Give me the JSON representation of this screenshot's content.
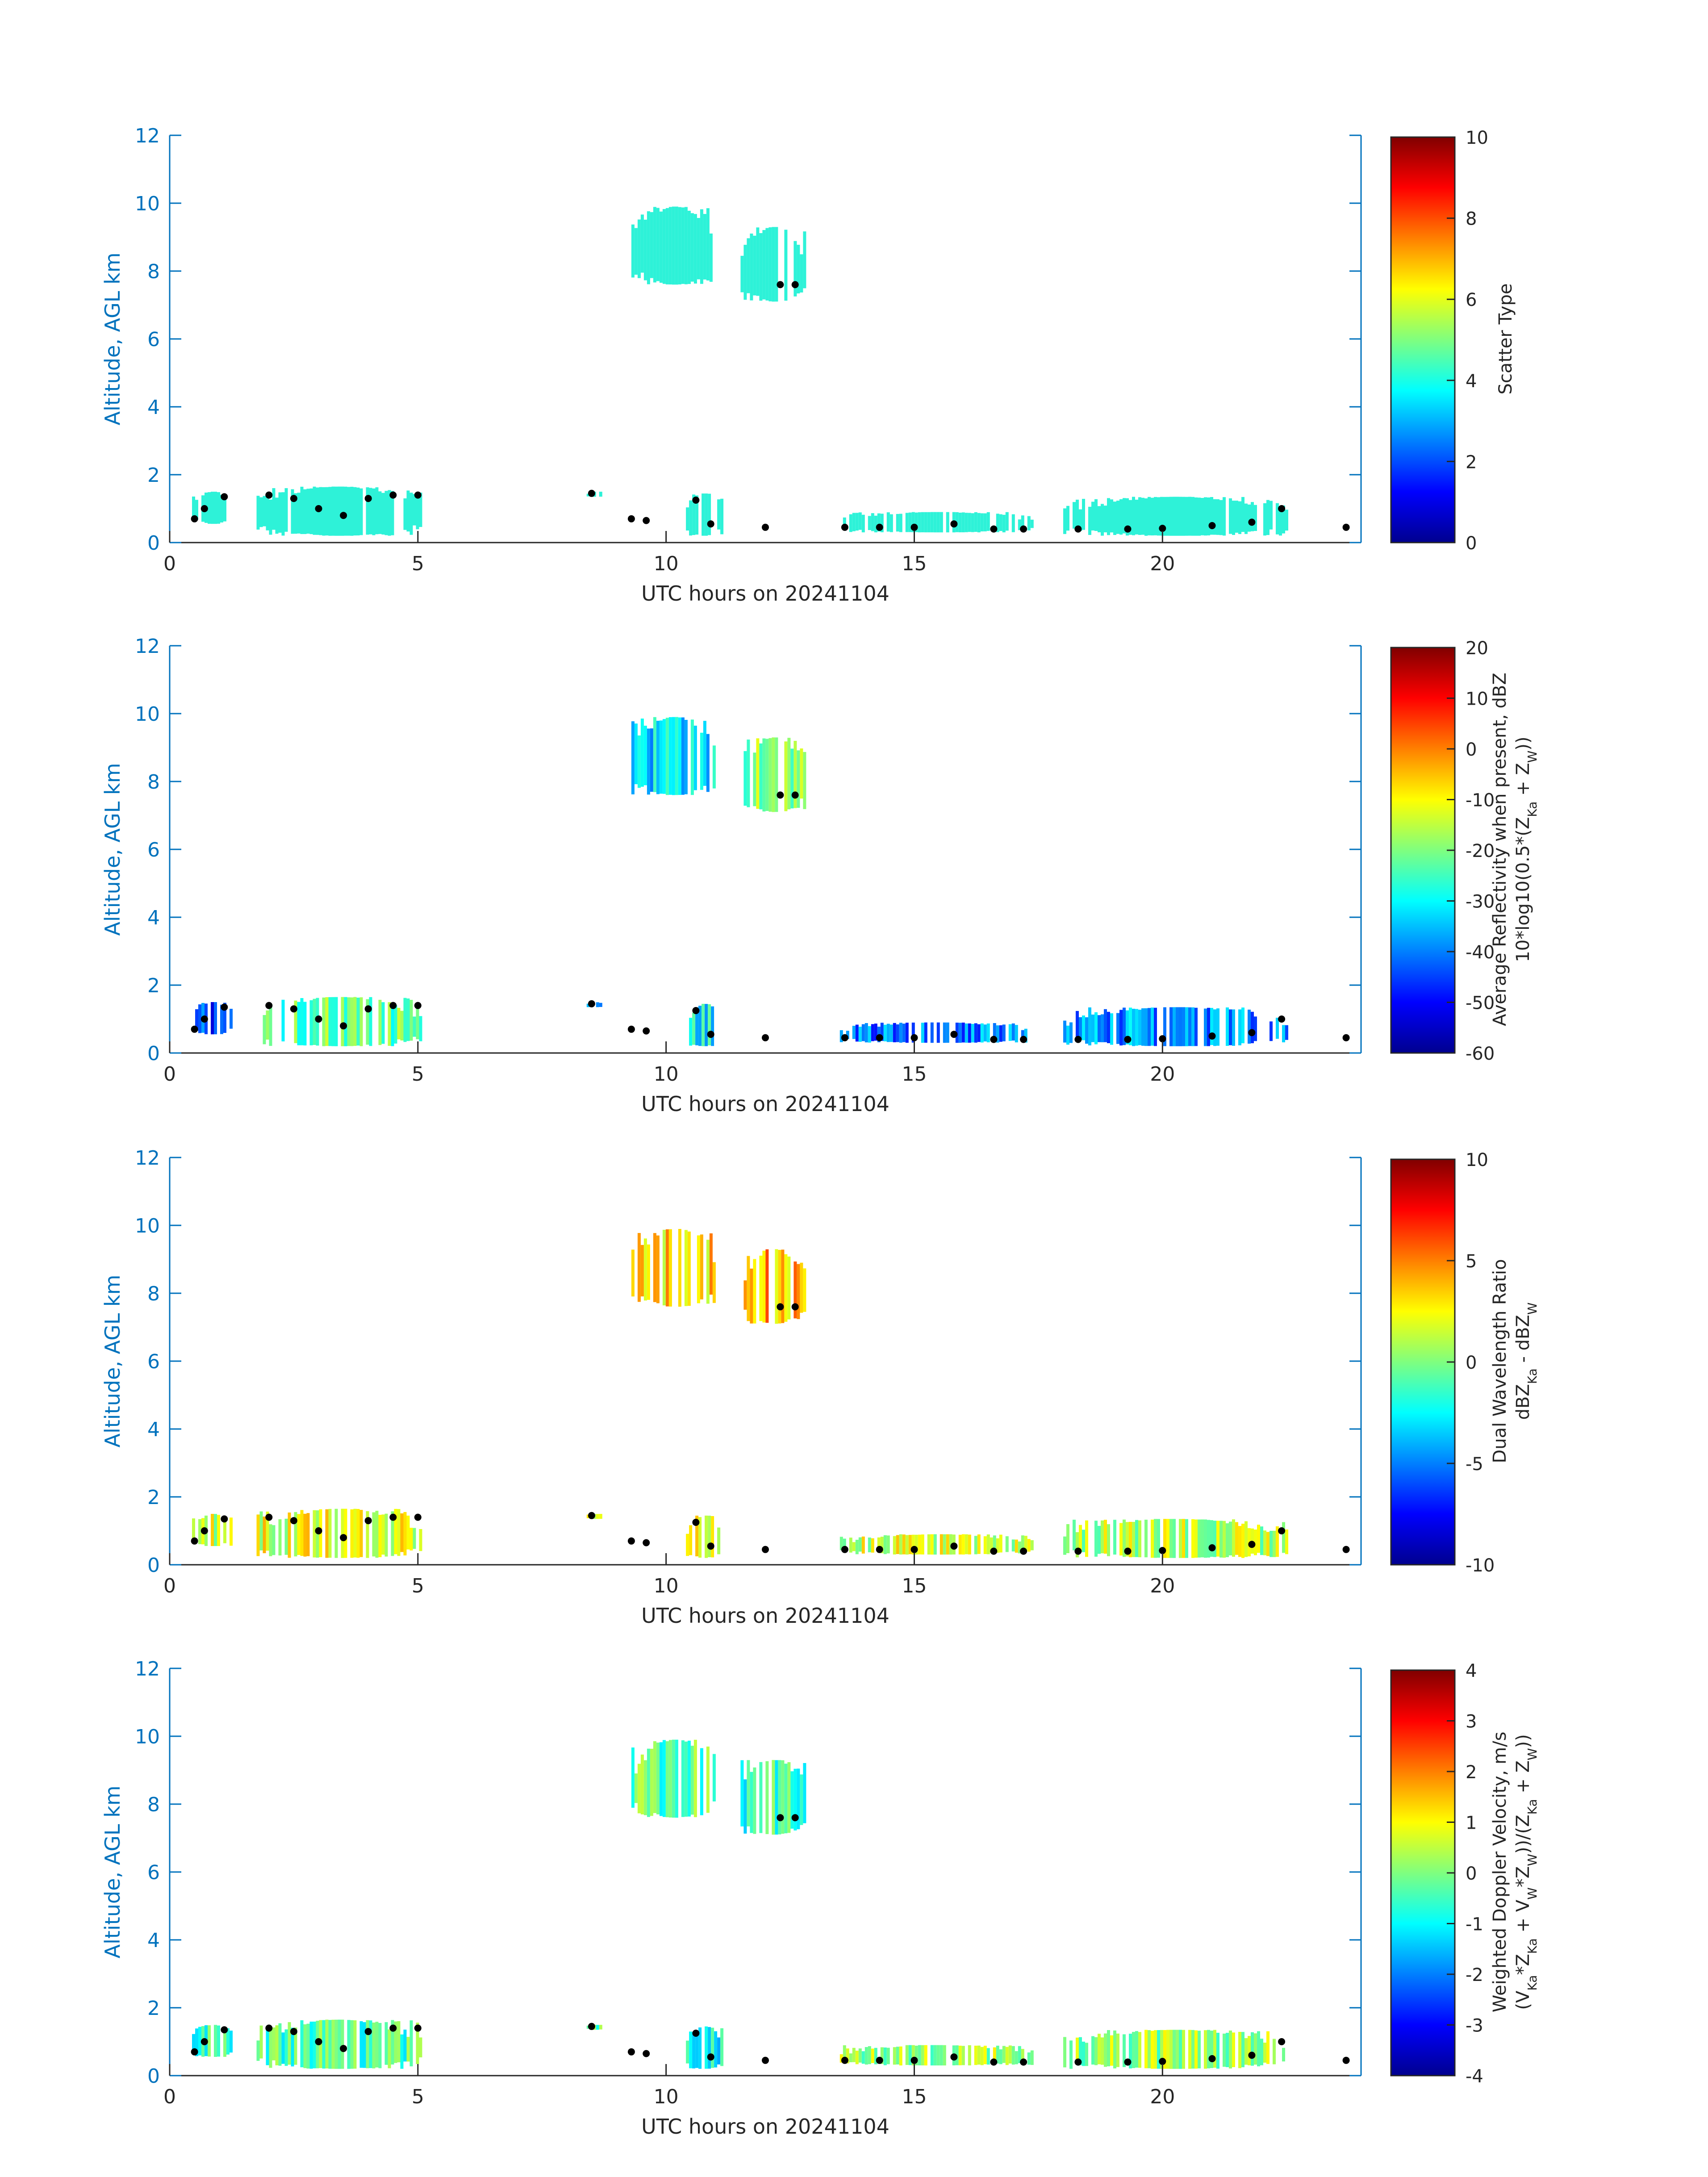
{
  "figure": {
    "date_label": "20241104"
  },
  "colors": {
    "axis_blue": "#0072BD",
    "axis_black": "#262626",
    "cloud_cyan": "#2EF2D8",
    "marker": "#000000"
  },
  "chart_data": [
    {
      "type": "heatmap",
      "xlabel": "UTC hours on 20241104",
      "ylabel": "Altitude, AGL km",
      "xlim": [
        0,
        24
      ],
      "ylim": [
        0,
        12
      ],
      "xticks": [
        "0",
        "5",
        "10",
        "15",
        "20"
      ],
      "yticks": [
        "0",
        "2",
        "4",
        "6",
        "8",
        "10",
        "12"
      ],
      "colorbar": {
        "label_lines": [
          "Scatter Type"
        ],
        "range": [
          0,
          10
        ],
        "ticks": [
          "0",
          "2",
          "4",
          "6",
          "8",
          "10"
        ]
      },
      "colormap": "jet",
      "grid": false,
      "cloud_regions": [
        {
          "x": [
            0.45,
            1.25
          ],
          "y": [
            0.55,
            1.5
          ],
          "value": 4.2
        },
        {
          "x": [
            1.75,
            5.05
          ],
          "y": [
            0.2,
            1.65
          ],
          "value": 4.2
        },
        {
          "x": [
            8.4,
            8.7
          ],
          "y": [
            1.35,
            1.5
          ],
          "value": 4.2
        },
        {
          "x": [
            9.3,
            11.0
          ],
          "y": [
            7.6,
            9.9
          ],
          "value": 4.2
        },
        {
          "x": [
            11.5,
            12.8
          ],
          "y": [
            7.1,
            9.3
          ],
          "value": 4.2
        },
        {
          "x": [
            10.4,
            11.1
          ],
          "y": [
            0.2,
            1.45
          ],
          "value": 4.2
        },
        {
          "x": [
            13.5,
            17.4
          ],
          "y": [
            0.3,
            0.9
          ],
          "value": 4.2
        },
        {
          "x": [
            18.0,
            22.5
          ],
          "y": [
            0.2,
            1.35
          ],
          "value": 4.2
        }
      ],
      "cloud_base_markers": [
        {
          "x": 0.5,
          "y": 0.7
        },
        {
          "x": 0.7,
          "y": 1.0
        },
        {
          "x": 1.1,
          "y": 1.35
        },
        {
          "x": 2.0,
          "y": 1.4
        },
        {
          "x": 2.5,
          "y": 1.3
        },
        {
          "x": 3.0,
          "y": 1.0
        },
        {
          "x": 3.5,
          "y": 0.8
        },
        {
          "x": 4.0,
          "y": 1.3
        },
        {
          "x": 4.5,
          "y": 1.4
        },
        {
          "x": 5.0,
          "y": 1.4
        },
        {
          "x": 8.5,
          "y": 1.45
        },
        {
          "x": 9.3,
          "y": 0.7
        },
        {
          "x": 9.6,
          "y": 0.65
        },
        {
          "x": 10.6,
          "y": 1.25
        },
        {
          "x": 10.9,
          "y": 0.55
        },
        {
          "x": 12.0,
          "y": 0.45
        },
        {
          "x": 12.3,
          "y": 7.6
        },
        {
          "x": 12.6,
          "y": 7.6
        },
        {
          "x": 13.6,
          "y": 0.45
        },
        {
          "x": 14.3,
          "y": 0.45
        },
        {
          "x": 15.0,
          "y": 0.45
        },
        {
          "x": 15.8,
          "y": 0.55
        },
        {
          "x": 16.6,
          "y": 0.4
        },
        {
          "x": 17.2,
          "y": 0.4
        },
        {
          "x": 18.3,
          "y": 0.4
        },
        {
          "x": 19.3,
          "y": 0.4
        },
        {
          "x": 20.0,
          "y": 0.42
        },
        {
          "x": 21.0,
          "y": 0.5
        },
        {
          "x": 21.8,
          "y": 0.6
        },
        {
          "x": 22.4,
          "y": 1.0
        },
        {
          "x": 23.7,
          "y": 0.45
        }
      ]
    },
    {
      "type": "heatmap",
      "xlabel": "UTC hours on 20241104",
      "ylabel": "Altitude, AGL km",
      "xlim": [
        0,
        24
      ],
      "ylim": [
        0,
        12
      ],
      "xticks": [
        "0",
        "5",
        "10",
        "15",
        "20"
      ],
      "yticks": [
        "0",
        "2",
        "4",
        "6",
        "8",
        "10",
        "12"
      ],
      "colorbar": {
        "label_lines": [
          "Average Reflectivity when present, dBZ",
          "10*log10(0.5*(Z_Ka + Z_W))"
        ],
        "range": [
          -60,
          20
        ],
        "ticks": [
          "-60",
          "-50",
          "-40",
          "-30",
          "-20",
          "-10",
          "0",
          "10",
          "20"
        ]
      },
      "colormap": "jet",
      "grid": false,
      "cloud_regions": [
        {
          "x": [
            0.45,
            1.25
          ],
          "y": [
            0.55,
            1.5
          ],
          "value": -45
        },
        {
          "x": [
            1.75,
            5.05
          ],
          "y": [
            0.2,
            1.65
          ],
          "value": -22
        },
        {
          "x": [
            8.4,
            8.7
          ],
          "y": [
            1.35,
            1.5
          ],
          "value": -40
        },
        {
          "x": [
            9.3,
            11.0
          ],
          "y": [
            7.6,
            9.9
          ],
          "value": -32
        },
        {
          "x": [
            11.5,
            12.8
          ],
          "y": [
            7.1,
            9.3
          ],
          "value": -18
        },
        {
          "x": [
            10.4,
            11.1
          ],
          "y": [
            0.2,
            1.45
          ],
          "value": -30
        },
        {
          "x": [
            13.5,
            17.4
          ],
          "y": [
            0.3,
            0.9
          ],
          "value": -40
        },
        {
          "x": [
            18.0,
            22.5
          ],
          "y": [
            0.2,
            1.35
          ],
          "value": -38
        }
      ],
      "cloud_base_markers": [
        {
          "x": 0.5,
          "y": 0.7
        },
        {
          "x": 0.7,
          "y": 1.0
        },
        {
          "x": 1.1,
          "y": 1.35
        },
        {
          "x": 2.0,
          "y": 1.4
        },
        {
          "x": 2.5,
          "y": 1.3
        },
        {
          "x": 3.0,
          "y": 1.0
        },
        {
          "x": 3.5,
          "y": 0.8
        },
        {
          "x": 4.0,
          "y": 1.3
        },
        {
          "x": 4.5,
          "y": 1.4
        },
        {
          "x": 5.0,
          "y": 1.4
        },
        {
          "x": 8.5,
          "y": 1.45
        },
        {
          "x": 9.3,
          "y": 0.7
        },
        {
          "x": 9.6,
          "y": 0.65
        },
        {
          "x": 10.6,
          "y": 1.25
        },
        {
          "x": 10.9,
          "y": 0.55
        },
        {
          "x": 12.0,
          "y": 0.45
        },
        {
          "x": 12.3,
          "y": 7.6
        },
        {
          "x": 12.6,
          "y": 7.6
        },
        {
          "x": 13.6,
          "y": 0.45
        },
        {
          "x": 14.3,
          "y": 0.45
        },
        {
          "x": 15.0,
          "y": 0.45
        },
        {
          "x": 15.8,
          "y": 0.55
        },
        {
          "x": 16.6,
          "y": 0.4
        },
        {
          "x": 17.2,
          "y": 0.4
        },
        {
          "x": 18.3,
          "y": 0.4
        },
        {
          "x": 19.3,
          "y": 0.4
        },
        {
          "x": 20.0,
          "y": 0.42
        },
        {
          "x": 21.0,
          "y": 0.5
        },
        {
          "x": 21.8,
          "y": 0.6
        },
        {
          "x": 22.4,
          "y": 1.0
        },
        {
          "x": 23.7,
          "y": 0.45
        }
      ]
    },
    {
      "type": "heatmap",
      "xlabel": "UTC hours on 20241104",
      "ylabel": "Altitude, AGL km",
      "xlim": [
        0,
        24
      ],
      "ylim": [
        0,
        12
      ],
      "xticks": [
        "0",
        "5",
        "10",
        "15",
        "20"
      ],
      "yticks": [
        "0",
        "2",
        "4",
        "6",
        "8",
        "10",
        "12"
      ],
      "colorbar": {
        "label_lines": [
          "Dual Wavelength Ratio",
          "dBZ_Ka - dBZ_W"
        ],
        "range": [
          -10,
          10
        ],
        "ticks": [
          "-10",
          "-5",
          "0",
          "5",
          "10"
        ]
      },
      "colormap": "jet",
      "grid": false,
      "cloud_regions": [
        {
          "x": [
            0.45,
            1.25
          ],
          "y": [
            0.55,
            1.5
          ],
          "value": 1.5
        },
        {
          "x": [
            1.75,
            5.05
          ],
          "y": [
            0.2,
            1.65
          ],
          "value": 2.0
        },
        {
          "x": [
            8.4,
            8.7
          ],
          "y": [
            1.35,
            1.5
          ],
          "value": 1.0
        },
        {
          "x": [
            9.3,
            11.0
          ],
          "y": [
            7.6,
            9.9
          ],
          "value": 3.0
        },
        {
          "x": [
            11.5,
            12.8
          ],
          "y": [
            7.1,
            9.3
          ],
          "value": 4.0
        },
        {
          "x": [
            10.4,
            11.1
          ],
          "y": [
            0.2,
            1.45
          ],
          "value": 2.5
        },
        {
          "x": [
            13.5,
            17.4
          ],
          "y": [
            0.3,
            0.9
          ],
          "value": 1.5
        },
        {
          "x": [
            18.0,
            22.5
          ],
          "y": [
            0.2,
            1.35
          ],
          "value": 1.0
        }
      ],
      "cloud_base_markers": [
        {
          "x": 0.5,
          "y": 0.7
        },
        {
          "x": 0.7,
          "y": 1.0
        },
        {
          "x": 1.1,
          "y": 1.35
        },
        {
          "x": 2.0,
          "y": 1.4
        },
        {
          "x": 2.5,
          "y": 1.3
        },
        {
          "x": 3.0,
          "y": 1.0
        },
        {
          "x": 3.5,
          "y": 0.8
        },
        {
          "x": 4.0,
          "y": 1.3
        },
        {
          "x": 4.5,
          "y": 1.4
        },
        {
          "x": 5.0,
          "y": 1.4
        },
        {
          "x": 8.5,
          "y": 1.45
        },
        {
          "x": 9.3,
          "y": 0.7
        },
        {
          "x": 9.6,
          "y": 0.65
        },
        {
          "x": 10.6,
          "y": 1.25
        },
        {
          "x": 10.9,
          "y": 0.55
        },
        {
          "x": 12.0,
          "y": 0.45
        },
        {
          "x": 12.3,
          "y": 7.6
        },
        {
          "x": 12.6,
          "y": 7.6
        },
        {
          "x": 13.6,
          "y": 0.45
        },
        {
          "x": 14.3,
          "y": 0.45
        },
        {
          "x": 15.0,
          "y": 0.45
        },
        {
          "x": 15.8,
          "y": 0.55
        },
        {
          "x": 16.6,
          "y": 0.4
        },
        {
          "x": 17.2,
          "y": 0.4
        },
        {
          "x": 18.3,
          "y": 0.4
        },
        {
          "x": 19.3,
          "y": 0.4
        },
        {
          "x": 20.0,
          "y": 0.42
        },
        {
          "x": 21.0,
          "y": 0.5
        },
        {
          "x": 21.8,
          "y": 0.6
        },
        {
          "x": 22.4,
          "y": 1.0
        },
        {
          "x": 23.7,
          "y": 0.45
        }
      ]
    },
    {
      "type": "heatmap",
      "xlabel": "UTC hours on 20241104",
      "ylabel": "Altitude, AGL km",
      "xlim": [
        0,
        24
      ],
      "ylim": [
        0,
        12
      ],
      "xticks": [
        "0",
        "5",
        "10",
        "15",
        "20"
      ],
      "yticks": [
        "0",
        "2",
        "4",
        "6",
        "8",
        "10",
        "12"
      ],
      "colorbar": {
        "label_lines": [
          "Weighted Doppler Velocity, m/s",
          "(V_Ka*Z_Ka + V_W*Z_W))/(Z_Ka + Z_W))"
        ],
        "range": [
          -4,
          4
        ],
        "ticks": [
          "-4",
          "-3",
          "-2",
          "-1",
          "0",
          "1",
          "2",
          "3",
          "4"
        ]
      },
      "colormap": "jet",
      "grid": false,
      "cloud_regions": [
        {
          "x": [
            0.45,
            1.25
          ],
          "y": [
            0.55,
            1.5
          ],
          "value": -0.5
        },
        {
          "x": [
            1.75,
            5.05
          ],
          "y": [
            0.2,
            1.65
          ],
          "value": -0.4
        },
        {
          "x": [
            8.4,
            8.7
          ],
          "y": [
            1.35,
            1.5
          ],
          "value": -0.3
        },
        {
          "x": [
            9.3,
            11.0
          ],
          "y": [
            7.6,
            9.9
          ],
          "value": -0.3
        },
        {
          "x": [
            11.5,
            12.8
          ],
          "y": [
            7.1,
            9.3
          ],
          "value": -0.6
        },
        {
          "x": [
            10.4,
            11.1
          ],
          "y": [
            0.2,
            1.45
          ],
          "value": -0.8
        },
        {
          "x": [
            13.5,
            17.4
          ],
          "y": [
            0.3,
            0.9
          ],
          "value": 0.3
        },
        {
          "x": [
            18.0,
            22.5
          ],
          "y": [
            0.2,
            1.35
          ],
          "value": 0.2
        }
      ],
      "cloud_base_markers": [
        {
          "x": 0.5,
          "y": 0.7
        },
        {
          "x": 0.7,
          "y": 1.0
        },
        {
          "x": 1.1,
          "y": 1.35
        },
        {
          "x": 2.0,
          "y": 1.4
        },
        {
          "x": 2.5,
          "y": 1.3
        },
        {
          "x": 3.0,
          "y": 1.0
        },
        {
          "x": 3.5,
          "y": 0.8
        },
        {
          "x": 4.0,
          "y": 1.3
        },
        {
          "x": 4.5,
          "y": 1.4
        },
        {
          "x": 5.0,
          "y": 1.4
        },
        {
          "x": 8.5,
          "y": 1.45
        },
        {
          "x": 9.3,
          "y": 0.7
        },
        {
          "x": 9.6,
          "y": 0.65
        },
        {
          "x": 10.6,
          "y": 1.25
        },
        {
          "x": 10.9,
          "y": 0.55
        },
        {
          "x": 12.0,
          "y": 0.45
        },
        {
          "x": 12.3,
          "y": 7.6
        },
        {
          "x": 12.6,
          "y": 7.6
        },
        {
          "x": 13.6,
          "y": 0.45
        },
        {
          "x": 14.3,
          "y": 0.45
        },
        {
          "x": 15.0,
          "y": 0.45
        },
        {
          "x": 15.8,
          "y": 0.55
        },
        {
          "x": 16.6,
          "y": 0.4
        },
        {
          "x": 17.2,
          "y": 0.4
        },
        {
          "x": 18.3,
          "y": 0.4
        },
        {
          "x": 19.3,
          "y": 0.4
        },
        {
          "x": 20.0,
          "y": 0.42
        },
        {
          "x": 21.0,
          "y": 0.5
        },
        {
          "x": 21.8,
          "y": 0.6
        },
        {
          "x": 22.4,
          "y": 1.0
        },
        {
          "x": 23.7,
          "y": 0.45
        }
      ]
    }
  ]
}
